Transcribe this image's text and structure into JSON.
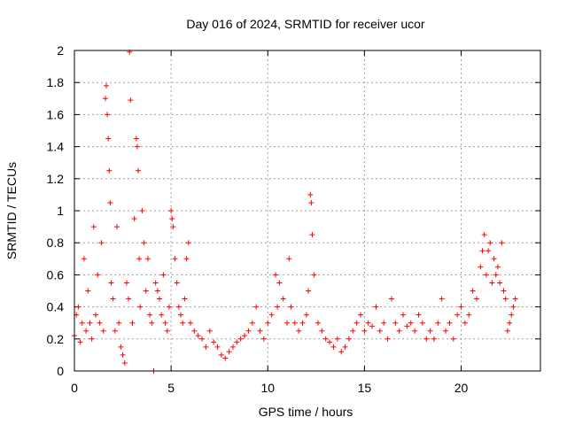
{
  "chart_data": {
    "type": "scatter",
    "title": "Day 016 of 2024, SRMTID for receiver ucor",
    "xlabel": "GPS time / hours",
    "ylabel": "SRMTID / TECUs",
    "xlim": [
      0,
      24.1
    ],
    "ylim": [
      0,
      2
    ],
    "x_ticks": [
      0,
      5,
      10,
      15,
      20
    ],
    "x_tick_labels": [
      "0",
      "5",
      "10",
      "15",
      "20"
    ],
    "y_ticks": [
      0,
      0.2,
      0.4,
      0.6,
      0.8,
      1,
      1.2,
      1.4,
      1.6,
      1.8,
      2
    ],
    "y_tick_labels": [
      "0",
      "0.2",
      "0.4",
      "0.6",
      "0.8",
      "1",
      "1.2",
      "1.4",
      "1.6",
      "1.8",
      "2"
    ],
    "grid": true,
    "marker": "plus",
    "series": [
      {
        "name": "SRMTID",
        "color": "#ff0000",
        "x": [
          0.0,
          0.1,
          0.2,
          0.3,
          0.4,
          0.5,
          0.6,
          0.7,
          0.8,
          0.9,
          1.0,
          1.1,
          1.2,
          1.3,
          1.4,
          1.5,
          1.6,
          1.65,
          1.7,
          1.75,
          1.8,
          1.85,
          1.9,
          2.0,
          2.1,
          2.2,
          2.3,
          2.4,
          2.5,
          2.6,
          2.7,
          2.8,
          2.85,
          2.9,
          3.0,
          3.1,
          3.2,
          3.25,
          3.3,
          3.35,
          3.4,
          3.5,
          3.6,
          3.7,
          3.8,
          3.9,
          4.0,
          4.1,
          4.2,
          4.3,
          4.4,
          4.5,
          4.6,
          4.7,
          4.8,
          4.9,
          5.0,
          5.05,
          5.1,
          5.2,
          5.3,
          5.4,
          5.5,
          5.6,
          5.7,
          5.8,
          5.9,
          6.0,
          6.2,
          6.4,
          6.6,
          6.8,
          7.0,
          7.2,
          7.4,
          7.6,
          7.8,
          8.0,
          8.2,
          8.4,
          8.6,
          8.8,
          9.0,
          9.2,
          9.4,
          9.6,
          9.8,
          10.0,
          10.2,
          10.4,
          10.5,
          10.6,
          10.8,
          11.0,
          11.1,
          11.2,
          11.4,
          11.6,
          11.8,
          12.0,
          12.1,
          12.2,
          12.25,
          12.3,
          12.4,
          12.6,
          12.8,
          13.0,
          13.2,
          13.4,
          13.6,
          13.8,
          14.0,
          14.2,
          14.4,
          14.6,
          14.8,
          15.0,
          15.2,
          15.4,
          15.6,
          15.8,
          16.0,
          16.2,
          16.4,
          16.6,
          16.8,
          17.0,
          17.2,
          17.4,
          17.6,
          17.8,
          18.0,
          18.2,
          18.4,
          18.6,
          18.8,
          19.0,
          19.2,
          19.4,
          19.6,
          19.8,
          20.0,
          20.2,
          20.4,
          20.6,
          20.8,
          21.0,
          21.1,
          21.2,
          21.3,
          21.4,
          21.5,
          21.6,
          21.7,
          21.8,
          21.9,
          22.0,
          22.1,
          22.2,
          22.3,
          22.4,
          22.5,
          22.6,
          22.7,
          22.8
        ],
        "values": [
          0.22,
          0.35,
          0.4,
          0.18,
          0.3,
          0.7,
          0.25,
          0.5,
          0.3,
          0.2,
          0.9,
          0.35,
          0.6,
          0.3,
          0.8,
          0.25,
          1.7,
          1.78,
          1.6,
          1.45,
          1.25,
          1.05,
          0.55,
          0.45,
          0.25,
          0.9,
          0.3,
          0.15,
          0.1,
          0.05,
          0.55,
          0.45,
          1.99,
          1.69,
          0.3,
          0.95,
          1.45,
          1.4,
          1.25,
          0.7,
          0.4,
          1.0,
          0.8,
          0.5,
          0.7,
          0.35,
          0.3,
          0.0,
          0.55,
          0.5,
          0.45,
          0.35,
          0.6,
          0.3,
          0.25,
          0.4,
          1.0,
          0.95,
          0.9,
          0.7,
          0.55,
          0.4,
          0.35,
          0.3,
          0.45,
          0.7,
          0.8,
          0.3,
          0.25,
          0.22,
          0.2,
          0.15,
          0.25,
          0.18,
          0.15,
          0.1,
          0.08,
          0.12,
          0.15,
          0.18,
          0.2,
          0.22,
          0.25,
          0.3,
          0.4,
          0.25,
          0.2,
          0.3,
          0.35,
          0.6,
          0.4,
          0.55,
          0.45,
          0.3,
          0.7,
          0.4,
          0.3,
          0.25,
          0.3,
          0.35,
          0.5,
          1.1,
          1.05,
          0.85,
          0.6,
          0.3,
          0.25,
          0.2,
          0.18,
          0.15,
          0.2,
          0.12,
          0.15,
          0.2,
          0.25,
          0.3,
          0.35,
          0.25,
          0.3,
          0.28,
          0.4,
          0.25,
          0.3,
          0.2,
          0.45,
          0.3,
          0.25,
          0.35,
          0.28,
          0.3,
          0.25,
          0.35,
          0.3,
          0.2,
          0.25,
          0.2,
          0.3,
          0.45,
          0.25,
          0.3,
          0.2,
          0.35,
          0.4,
          0.3,
          0.35,
          0.5,
          0.45,
          0.65,
          0.75,
          0.85,
          0.6,
          0.75,
          0.8,
          0.55,
          0.7,
          0.6,
          0.65,
          0.55,
          0.8,
          0.5,
          0.45,
          0.25,
          0.3,
          0.35,
          0.4,
          0.45
        ]
      }
    ]
  }
}
